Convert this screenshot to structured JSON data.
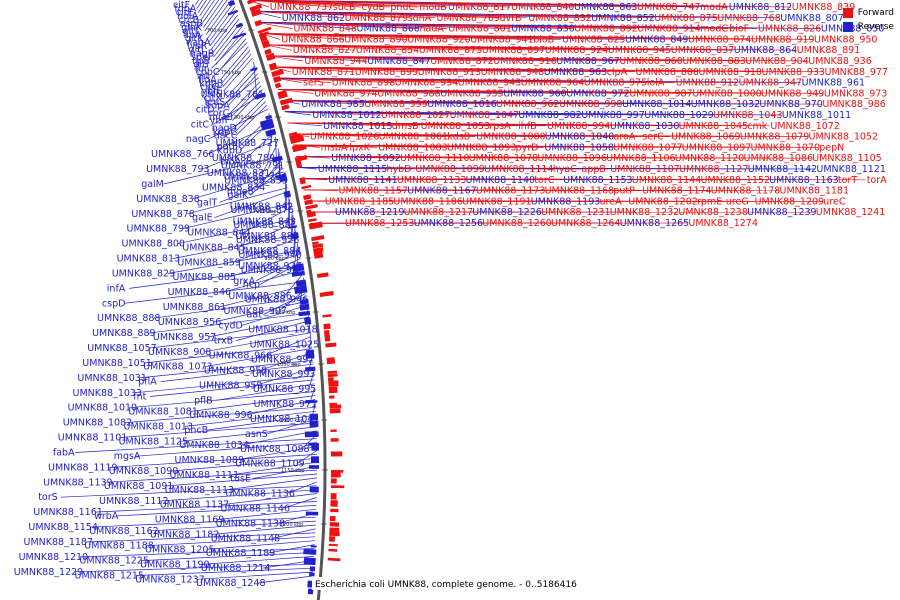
{
  "caption": "Escherichia coli UMNK88, complete genome. - 0..5186416",
  "legend": [
    {
      "label": "Forward",
      "color": "#ee1111"
    },
    {
      "label": "Reverse",
      "color": "#2222cc"
    }
  ],
  "colors": {
    "forward": "#ee1111",
    "reverse": "#2222cc",
    "backbone": "#555555"
  },
  "ticks": [
    "700 kbp",
    "750 kbp",
    "800 kbp",
    "850 kbp",
    "900 kbp",
    "950 kbp",
    "1000 kbp",
    "1050 kbp",
    "1100 kbp",
    "1150 kbp",
    "1200 kbp"
  ],
  "left_labels": [
    "citF",
    "fdpA",
    "citE",
    "holA",
    "crcB",
    "asnB",
    "glnK",
    "gltL",
    "lipA",
    "gltK",
    "nagA",
    "lysR",
    "gltJ",
    "nagB",
    "speF",
    "lipB",
    "gltI",
    "fur",
    "cobC",
    "int",
    "fldA",
    "kdpB",
    "citG",
    "ybfE",
    "UMNK88_761",
    "citX",
    "leuS",
    "kdpA",
    "citD",
    "corC",
    "miaB",
    "ybfF",
    "citC",
    "nagD",
    "kdpC",
    "dacC",
    "nagC",
    "UMNK88_727",
    "potE",
    "kdpD",
    "UMNK88_766",
    "UMNK88_789",
    "bioA",
    "UMNK88_791",
    "UMNK88_793",
    "UMNK88_831",
    "UMNK88_794",
    "UMNK88_833",
    "galM",
    "UMNK88_834",
    "moeB",
    "galK",
    "UMNK88_838",
    "galT",
    "UMNK88_842",
    "UMNK88_876",
    "UMNK88_878",
    "galE",
    "UMNK88_843",
    "UMNK88_881",
    "UMNK88_799",
    "UMNK88_844",
    "UMNK88_882",
    "UMNK88_926",
    "UMNK88_800",
    "UMNK88_845",
    "UMNK88_884",
    "UMNK88_940",
    "UMNK88_813",
    "UMNK88_859",
    "UMNK88_928",
    "UMNK88_965",
    "UMNK88_829",
    "UMNK88_885",
    "grxA",
    "hcp",
    "infA",
    "UMNK88_846",
    "UMNK88_886",
    "UMNK88_946",
    "cspD",
    "UMNK88_861",
    "UMNK88_907",
    "aat",
    "UMNK88_888",
    "UMNK88_956",
    "cydD",
    "UMNK88_1018",
    "UMNK88_889",
    "UMNK88_957",
    "trxB",
    "UMNK88_1025",
    "UMNK88_1057",
    "UMNK88_908",
    "UMNK88_966",
    "UMNK88_992",
    "UMNK88_1051",
    "UMNK88_1073",
    "UMNK88_958",
    "UMNK88_993",
    "UMNK88_1031",
    "pflA",
    "UMNK88_959",
    "UMNK88_995",
    "UMNK88_1033",
    "fnt",
    "pflB",
    "UMNK88_971",
    "UMNK88_1010",
    "UMNK88_1081",
    "UMNK88_996",
    "UMNK88_1041",
    "UMNK88_1082",
    "UMNK88_1013",
    "pncB",
    "asnS",
    "UMNK88_1101",
    "UMNK88_1125",
    "UMNK88_1034",
    "UMNK88_1088",
    "fabA",
    "mgsA",
    "UMNK88_1089",
    "UMNK88_1109",
    "UMNK88_1119",
    "UMNK88_1090",
    "UMNK88_1111",
    "tusE",
    "UMNK88_1139",
    "UMNK88_1091",
    "UMNK88_1113",
    "UMNK88_1136",
    "torS",
    "UMNK88_1112",
    "UMNK88_1137",
    "UMNK88_1146",
    "UMNK88_1161",
    "wrbA",
    "UMNK88_1169",
    "UMNK88_1138",
    "UMNK88_1154",
    "UMNK88_1162",
    "UMNK88_1182",
    "UMNK88_1148",
    "UMNK88_1187",
    "UMNK88_1188",
    "UMNK88_1205",
    "UMNK88_1189",
    "UMNK88_1210",
    "UMNK88_1225",
    "UMNK88_1190",
    "UMNK88_1214",
    "UMNK88_1229",
    "UMNK88_1215",
    "UMNK88_1237",
    "UMNK88_1248"
  ],
  "right_labels": [
    {
      "t": "UMNK88_737",
      "s": "f"
    },
    {
      "t": "sucB",
      "s": "f"
    },
    {
      "t": "cydB",
      "s": "f"
    },
    {
      "t": "pnuC",
      "s": "f"
    },
    {
      "t": "modB",
      "s": "f"
    },
    {
      "t": "UMNK88_817",
      "s": "f"
    },
    {
      "t": "UMNK88_840",
      "s": "f"
    },
    {
      "t": "UMNK88_863",
      "s": "r"
    },
    {
      "t": "UMNK88_747",
      "s": "f"
    },
    {
      "t": "modA",
      "s": "f"
    },
    {
      "t": "UMNK88_812",
      "s": "r"
    },
    {
      "t": "UMNK88_839",
      "s": "f"
    },
    {
      "t": "UMNK88_862",
      "s": "r"
    },
    {
      "t": "UMNK88_879",
      "s": "f"
    },
    {
      "t": "sdhA",
      "s": "f"
    },
    {
      "t": "UMNK88_769",
      "s": "f"
    },
    {
      "t": "uvrB",
      "s": "f"
    },
    {
      "t": "UMNK88_832",
      "s": "f"
    },
    {
      "t": "UMNK88_852",
      "s": "r"
    },
    {
      "t": "UMNK88_875",
      "s": "f"
    },
    {
      "t": "UMNK88_768",
      "s": "f"
    },
    {
      "t": "UMNK88_807",
      "s": "r"
    },
    {
      "t": "UMNK88_848",
      "s": "f"
    },
    {
      "t": "UMNK88_868",
      "s": "r"
    },
    {
      "t": "nadA",
      "s": "f"
    },
    {
      "t": "UMNK88_801",
      "s": "f"
    },
    {
      "t": "UMNK88_830",
      "s": "r"
    },
    {
      "t": "UMNK88_892",
      "s": "f"
    },
    {
      "t": "UMNK88_914",
      "s": "f"
    },
    {
      "t": "modC",
      "s": "f"
    },
    {
      "t": "bioF",
      "s": "f"
    },
    {
      "t": "UMNK88_826",
      "s": "f"
    },
    {
      "t": "UMNK88_850",
      "s": "r"
    },
    {
      "t": "UMNK88_866",
      "s": "f"
    },
    {
      "t": "UMNK88_890",
      "s": "f"
    },
    {
      "t": "UMNK88_920",
      "s": "f"
    },
    {
      "t": "UMNK88_941",
      "s": "f"
    },
    {
      "t": "bioB",
      "s": "f"
    },
    {
      "t": "UMNK88_825",
      "s": "f"
    },
    {
      "t": "UMNK88_849",
      "s": "r"
    },
    {
      "t": "UMNK88_874",
      "s": "f"
    },
    {
      "t": "UMNK88_919",
      "s": "f"
    },
    {
      "t": "UMNK88_950",
      "s": "f"
    },
    {
      "t": "UMNK88_827",
      "s": "f"
    },
    {
      "t": "UMNK88_854",
      "s": "f"
    },
    {
      "t": "UMNK88_873",
      "s": "f"
    },
    {
      "t": "UMNK88_897",
      "s": "f"
    },
    {
      "t": "UMNK88_924",
      "s": "f"
    },
    {
      "t": "UMNK88_945",
      "s": "f"
    },
    {
      "t": "UMNK88_837",
      "s": "f"
    },
    {
      "t": "UMNK88_864",
      "s": "r"
    },
    {
      "t": "UMNK88_891",
      "s": "f"
    },
    {
      "t": "UMNK88_944",
      "s": "f"
    },
    {
      "t": "UMNK88_847",
      "s": "r"
    },
    {
      "t": "UMNK88_872",
      "s": "f"
    },
    {
      "t": "UMNK88_916",
      "s": "f"
    },
    {
      "t": "UMNK88_967",
      "s": "r"
    },
    {
      "t": "UMNK88_860",
      "s": "f"
    },
    {
      "t": "UMNK88_883",
      "s": "f"
    },
    {
      "t": "UMNK88_904",
      "s": "f"
    },
    {
      "t": "UMNK88_936",
      "s": "f"
    },
    {
      "t": "UMNK88_871",
      "s": "f"
    },
    {
      "t": "UMNK88_899",
      "s": "f"
    },
    {
      "t": "UMNK88_913",
      "s": "f"
    },
    {
      "t": "UMNK88_948",
      "s": "f"
    },
    {
      "t": "UMNK88_963",
      "s": "r"
    },
    {
      "t": "clpA",
      "s": "f"
    },
    {
      "t": "UMNK88_880",
      "s": "f"
    },
    {
      "t": "UMNK88_910",
      "s": "f"
    },
    {
      "t": "UMNK88_933",
      "s": "f"
    },
    {
      "t": "UMNK88_977",
      "s": "f"
    },
    {
      "t": "serS",
      "s": "f"
    },
    {
      "t": "UMNK88_898",
      "s": "f"
    },
    {
      "t": "UMNK88_934",
      "s": "f"
    },
    {
      "t": "UMNK88_943",
      "s": "f"
    },
    {
      "t": "UMNK88_964",
      "s": "f"
    },
    {
      "t": "UMNK88_975",
      "s": "f"
    },
    {
      "t": "lolA",
      "s": "f"
    },
    {
      "t": "UMNK88_912",
      "s": "f"
    },
    {
      "t": "UMNK88_947",
      "s": "f"
    },
    {
      "t": "UMNK88_961",
      "s": "r"
    },
    {
      "t": "UMNK88_974",
      "s": "f"
    },
    {
      "t": "UMNK88_988",
      "s": "f"
    },
    {
      "t": "UMNK88_935",
      "s": "f"
    },
    {
      "t": "UMNK88_960",
      "s": "r"
    },
    {
      "t": "UMNK88_972",
      "s": "r"
    },
    {
      "t": "UMNK88_987",
      "s": "f"
    },
    {
      "t": "UMNK88_1000",
      "s": "f"
    },
    {
      "t": "UMNK88_949",
      "s": "f"
    },
    {
      "t": "UMNK88_973",
      "s": "f"
    },
    {
      "t": "UMNK88_985",
      "s": "r"
    },
    {
      "t": "UMNK88_999",
      "s": "f"
    },
    {
      "t": "UMNK88_1016",
      "s": "r"
    },
    {
      "t": "UMNK88_962",
      "s": "f"
    },
    {
      "t": "UMNK88_998",
      "s": "f"
    },
    {
      "t": "UMNK88_1014",
      "s": "r"
    },
    {
      "t": "UMNK88_1032",
      "s": "r"
    },
    {
      "t": "UMNK88_970",
      "s": "r"
    },
    {
      "t": "UMNK88_986",
      "s": "f"
    },
    {
      "t": "UMNK88_1012",
      "s": "r"
    },
    {
      "t": "UMNK88_1027",
      "s": "f"
    },
    {
      "t": "UMNK88_1047",
      "s": "f"
    },
    {
      "t": "UMNK88_982",
      "s": "r"
    },
    {
      "t": "UMNK88_997",
      "s": "r"
    },
    {
      "t": "UMNK88_1029",
      "s": "r"
    },
    {
      "t": "UMNK88_1043",
      "s": "f"
    },
    {
      "t": "UMNK88_1011",
      "s": "r"
    },
    {
      "t": "UMNK88_1015",
      "s": "r"
    },
    {
      "t": "dmsB",
      "s": "f"
    },
    {
      "t": "UMNK88_1053",
      "s": "f"
    },
    {
      "t": "rpsA",
      "s": "f"
    },
    {
      "t": "ihfB",
      "s": "f"
    },
    {
      "t": "UMNK88_994",
      "s": "f"
    },
    {
      "t": "UMNK88_1030",
      "s": "r"
    },
    {
      "t": "UMNK88_1045",
      "s": "f"
    },
    {
      "t": "cmk",
      "s": "f"
    },
    {
      "t": "UMNK88_1072",
      "s": "f"
    },
    {
      "t": "UMNK88_1026",
      "s": "f"
    },
    {
      "t": "UMNK88_1061",
      "s": "f"
    },
    {
      "t": "kdsB",
      "s": "f"
    },
    {
      "t": "UMNK88_1080",
      "s": "f"
    },
    {
      "t": "UMNK88_1040",
      "s": "r"
    },
    {
      "t": "aroA",
      "s": "f"
    },
    {
      "t": "serC",
      "s": "f"
    },
    {
      "t": "UMNK88_1069",
      "s": "f"
    },
    {
      "t": "UMNK88_1079",
      "s": "f"
    },
    {
      "t": "UMNK88_1052",
      "s": "f"
    },
    {
      "t": "msbA",
      "s": "f"
    },
    {
      "t": "lpxK",
      "s": "f"
    },
    {
      "t": "UMNK88_1083",
      "s": "f"
    },
    {
      "t": "UMNK88_1093",
      "s": "f"
    },
    {
      "t": "pyrD",
      "s": "f"
    },
    {
      "t": "UMNK88_1058",
      "s": "r"
    },
    {
      "t": "UMNK88_1077",
      "s": "f"
    },
    {
      "t": "UMNK88_1097",
      "s": "f"
    },
    {
      "t": "UMNK88_1070",
      "s": "f"
    },
    {
      "t": "pepN",
      "s": "f"
    },
    {
      "t": "UMNK88_1092",
      "s": "r"
    },
    {
      "t": "UMNK88_1110",
      "s": "f"
    },
    {
      "t": "UMNK88_1078",
      "s": "f"
    },
    {
      "t": "UMNK88_1096",
      "s": "f"
    },
    {
      "t": "UMNK88_1106",
      "s": "f"
    },
    {
      "t": "UMNK88_1120",
      "s": "f"
    },
    {
      "t": "UMNK88_1086",
      "s": "f"
    },
    {
      "t": "UMNK88_1105",
      "s": "f"
    },
    {
      "t": "UMNK88_1115",
      "s": "r"
    },
    {
      "t": "hybD",
      "s": "f"
    },
    {
      "t": "UMNK88_1099",
      "s": "f"
    },
    {
      "t": "UMNK88_1114",
      "s": "f"
    },
    {
      "t": "hyaC",
      "s": "f"
    },
    {
      "t": "appB",
      "s": "f"
    },
    {
      "t": "UMNK88_1107",
      "s": "f"
    },
    {
      "t": "UMNK88_1127",
      "s": "f"
    },
    {
      "t": "UMNK88_1142",
      "s": "r"
    },
    {
      "t": "UMNK88_1121",
      "s": "r"
    },
    {
      "t": "UMNK88_1141",
      "s": "r"
    },
    {
      "t": "UMNK88_1133",
      "s": "f"
    },
    {
      "t": "UMNK88_1140",
      "s": "r"
    },
    {
      "t": "torC",
      "s": "f"
    },
    {
      "t": "UMNK88_1153",
      "s": "r"
    },
    {
      "t": "UMNK88_1144",
      "s": "f"
    },
    {
      "t": "UMNK88_1152",
      "s": "f"
    },
    {
      "t": "UMNK88_1163",
      "s": "r"
    },
    {
      "t": "torT",
      "s": "f"
    },
    {
      "t": "torA",
      "s": "f"
    },
    {
      "t": "UMNK88_1157",
      "s": "f"
    },
    {
      "t": "UMNK88_1167",
      "s": "r"
    },
    {
      "t": "UMNK88_1173",
      "s": "f"
    },
    {
      "t": "UMNK88_1168",
      "s": "f"
    },
    {
      "t": "putP",
      "s": "f"
    },
    {
      "t": "UMNK88_1174",
      "s": "f"
    },
    {
      "t": "UMNK88_1178",
      "s": "f"
    },
    {
      "t": "UMNK88_1181",
      "s": "f"
    },
    {
      "t": "UMNK88_1185",
      "s": "f"
    },
    {
      "t": "UMNK88_1186",
      "s": "f"
    },
    {
      "t": "UMNK88_1191",
      "s": "f"
    },
    {
      "t": "UMNK88_1193",
      "s": "r"
    },
    {
      "t": "ureA",
      "s": "f"
    },
    {
      "t": "UMNK88_1202",
      "s": "f"
    },
    {
      "t": "rpmE",
      "s": "f"
    },
    {
      "t": "ureG",
      "s": "f"
    },
    {
      "t": "UMNK88_1209",
      "s": "f"
    },
    {
      "t": "ureC",
      "s": "f"
    },
    {
      "t": "UMNK88_1219",
      "s": "r"
    },
    {
      "t": "UMNK88_1217",
      "s": "f"
    },
    {
      "t": "UMNK88_1226",
      "s": "r"
    },
    {
      "t": "UMNK88_1231",
      "s": "f"
    },
    {
      "t": "UMNK88_1232",
      "s": "f"
    },
    {
      "t": "UMNK88_1238",
      "s": "f"
    },
    {
      "t": "UMNK88_1239",
      "s": "r"
    },
    {
      "t": "UMNK88_1241",
      "s": "f"
    },
    {
      "t": "UMNK88_1253",
      "s": "f"
    },
    {
      "t": "UMNK88_1256",
      "s": "r"
    },
    {
      "t": "UMNK88_1260",
      "s": "f"
    },
    {
      "t": "UMNK88_1264",
      "s": "f"
    },
    {
      "t": "UMNK88_1265",
      "s": "r"
    },
    {
      "t": "UMNK88_1274",
      "s": "f"
    }
  ]
}
